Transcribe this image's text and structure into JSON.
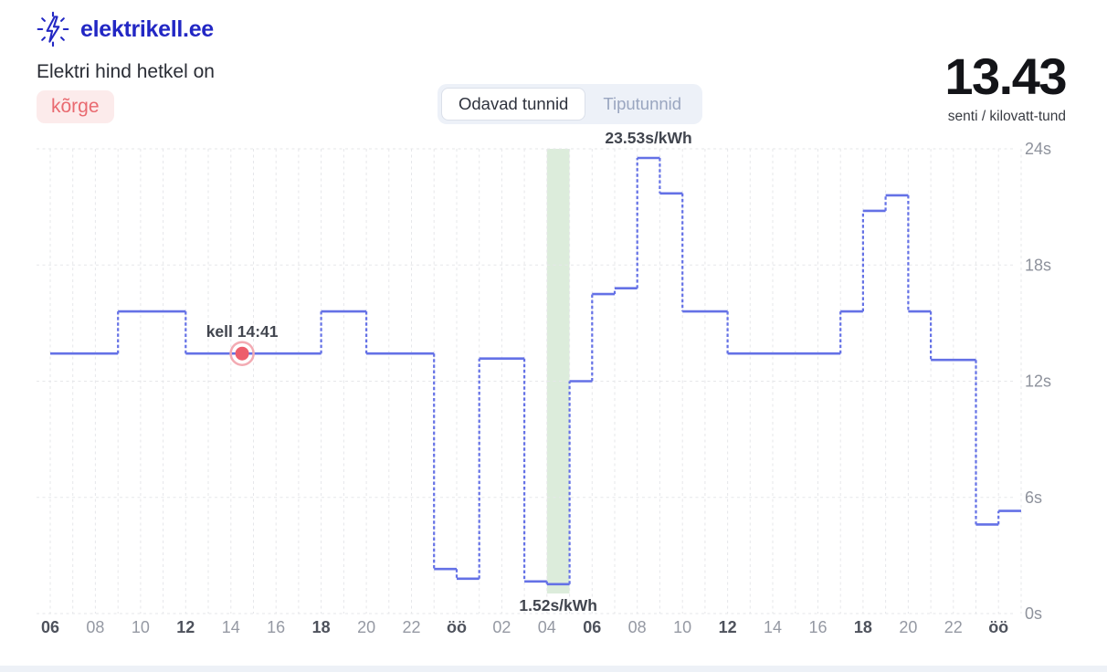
{
  "header": {
    "brand": "elektrikell.ee",
    "status_line": "Elektri hind hetkel on",
    "status_badge": "kõrge",
    "price_value": "13.43",
    "price_unit": "senti / kilovatt-tund"
  },
  "toggle": {
    "options": [
      {
        "label": "Odavad tunnid",
        "selected": true
      },
      {
        "label": "Tiputunnid",
        "selected": false
      }
    ]
  },
  "chart_data": {
    "type": "line",
    "subtype": "stepped-hourly-price",
    "unit": "senti/kWh",
    "start_hour_label": "06",
    "hour_values": [
      13.43,
      13.43,
      13.43,
      15.6,
      15.6,
      15.6,
      13.43,
      13.43,
      13.43,
      13.43,
      13.43,
      13.43,
      15.6,
      15.6,
      13.43,
      13.43,
      13.43,
      2.3,
      1.8,
      13.17,
      13.17,
      1.66,
      1.52,
      12.0,
      16.5,
      16.8,
      23.53,
      21.7,
      15.6,
      15.6,
      13.43,
      13.43,
      13.43,
      13.43,
      13.43,
      15.6,
      20.8,
      21.6,
      15.6,
      13.1,
      13.1,
      4.6,
      5.3
    ],
    "x_tick_labels": [
      "06",
      "08",
      "10",
      "12",
      "14",
      "16",
      "18",
      "20",
      "22",
      "öö",
      "02",
      "04",
      "06",
      "08",
      "10",
      "12",
      "14",
      "16",
      "18",
      "20",
      "22",
      "öö"
    ],
    "x_tick_emphasis": [
      "06",
      "12",
      "18",
      "öö"
    ],
    "y_ticks": [
      {
        "label": "24s",
        "value": 24
      },
      {
        "label": "18s",
        "value": 18
      },
      {
        "label": "12s",
        "value": 12
      },
      {
        "label": "6s",
        "value": 6
      },
      {
        "label": "0s",
        "value": 0
      }
    ],
    "ylim": [
      0,
      24
    ],
    "grid": "hourly vertical + 6s horizontal, dashed",
    "line_color": "#6471e6",
    "marker_color": "#ed5e6c",
    "highlight": {
      "start_index": 22,
      "end_index": 23,
      "color": "#dcecdb",
      "meaning": "cheapest hour"
    },
    "annotations": {
      "max": {
        "text": "23.53s/kWh",
        "hour_center": 26.5
      },
      "min": {
        "text": "1.52s/kWh",
        "hour_center": 22.5
      },
      "current": {
        "text": "kell 14:41",
        "hour_offset": 8.5,
        "value": 13.43
      }
    }
  }
}
